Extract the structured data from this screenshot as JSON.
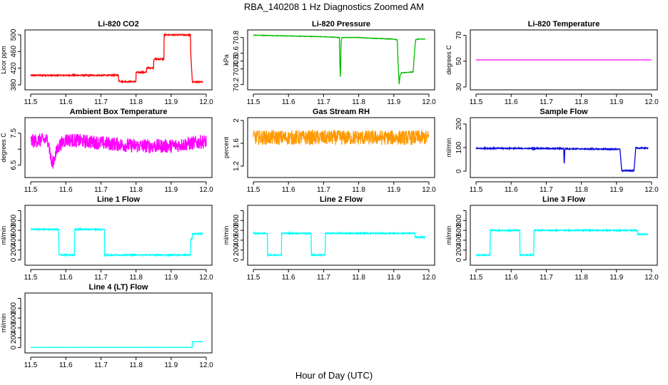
{
  "figure": {
    "title": "RBA_140208  1 Hz Diagnostics Zoomed AM",
    "xlabel": "Hour of Day (UTC)"
  },
  "chart_data": [
    {
      "type": "line",
      "title": "Li-820 CO2",
      "ylabel": "Licor ppm",
      "color": "#ff0000",
      "noise": 1.5,
      "xlim": [
        11.5,
        12.0
      ],
      "ylim": [
        375,
        505
      ],
      "yticks": [
        380,
        420,
        460,
        500
      ],
      "xticks": [
        11.5,
        11.6,
        11.7,
        11.8,
        11.9,
        12.0
      ],
      "series": [
        {
          "name": "CO2",
          "x": [
            11.5,
            11.75,
            11.75,
            11.76,
            11.76,
            11.8,
            11.8,
            11.83,
            11.83,
            11.85,
            11.85,
            11.88,
            11.88,
            11.955,
            11.955,
            11.96,
            11.96,
            11.99
          ],
          "y": [
            403,
            403,
            390,
            388,
            388,
            388,
            410,
            410,
            421,
            421,
            442,
            442,
            500,
            500,
            470,
            393,
            387,
            387
          ]
        }
      ]
    },
    {
      "type": "line",
      "title": "Li-820 Pressure",
      "ylabel": "kPa",
      "color": "#00bb00",
      "noise": 0.003,
      "xlim": [
        11.5,
        12.0
      ],
      "ylim": [
        70.17,
        70.86
      ],
      "yticks": [
        70.2,
        70.5,
        70.8
      ],
      "ytick_labels": [
        "70.2",
        "70.5",
        "70.8"
      ],
      "ytick_minor": [
        70.4,
        70.6
      ],
      "ytick_minor_labels": [
        "70.4",
        "70.6"
      ],
      "xticks": [
        11.5,
        11.6,
        11.7,
        11.8,
        11.9,
        12.0
      ],
      "series": [
        {
          "name": "Pressure",
          "x": [
            11.5,
            11.6,
            11.7,
            11.745,
            11.746,
            11.748,
            11.75,
            11.752,
            11.8,
            11.84,
            11.9,
            11.91,
            11.912,
            11.915,
            11.918,
            11.922,
            11.95,
            11.955,
            11.958,
            11.962,
            11.97,
            11.99
          ],
          "y": [
            70.83,
            70.82,
            70.81,
            70.8,
            70.5,
            70.28,
            70.75,
            70.8,
            70.8,
            70.79,
            70.78,
            70.77,
            70.5,
            70.2,
            70.32,
            70.35,
            70.36,
            70.36,
            70.55,
            70.77,
            70.78,
            70.78
          ]
        }
      ]
    },
    {
      "type": "line",
      "title": "Li-820 Temperature",
      "ylabel": "degrees C",
      "color": "#ff00ff",
      "noise": 0,
      "xlim": [
        11.5,
        12.0
      ],
      "ylim": [
        30,
        72
      ],
      "yticks": [
        30,
        50,
        70
      ],
      "xticks": [
        11.5,
        11.6,
        11.7,
        11.8,
        11.9,
        12.0
      ],
      "series": [
        {
          "name": "Temperature",
          "x": [
            11.5,
            12.0
          ],
          "y": [
            51,
            51
          ]
        }
      ]
    },
    {
      "type": "line",
      "title": "Ambient Box Temperature",
      "ylabel": "degrees C",
      "color": "#ff00ff",
      "noise": 0.22,
      "xlim": [
        11.5,
        12.0
      ],
      "ylim": [
        6.2,
        7.9
      ],
      "yticks": [
        6.5,
        7.0,
        7.5
      ],
      "ytick_labels": [
        "6.5",
        "",
        "7.5"
      ],
      "xticks": [
        11.5,
        11.6,
        11.7,
        11.8,
        11.9,
        12.0
      ],
      "series": [
        {
          "name": "Ambient",
          "x": [
            11.5,
            11.55,
            11.56,
            11.57,
            11.58,
            11.6,
            11.7,
            11.8,
            11.9,
            12.0
          ],
          "y": [
            7.25,
            7.3,
            6.5,
            6.8,
            7.1,
            7.3,
            7.2,
            7.1,
            7.1,
            7.25
          ]
        }
      ]
    },
    {
      "type": "line",
      "title": "Gas Stream RH",
      "ylabel": "percent",
      "color": "#ff9900",
      "noise": 0.13,
      "xlim": [
        11.5,
        12.0
      ],
      "ylim": [
        1.05,
        2.0
      ],
      "yticks": [
        1.2,
        1.6,
        2.0
      ],
      "xticks": [
        11.5,
        11.6,
        11.7,
        11.8,
        11.9,
        12.0
      ],
      "series": [
        {
          "name": "RH",
          "x": [
            11.5,
            11.6,
            11.7,
            11.8,
            11.9,
            12.0
          ],
          "y": [
            1.7,
            1.7,
            1.7,
            1.7,
            1.7,
            1.7
          ]
        }
      ]
    },
    {
      "type": "line",
      "title": "Sample Flow",
      "ylabel": "ml/min",
      "color": "#0000dd",
      "noise": 2.5,
      "xlim": [
        11.5,
        12.0
      ],
      "ylim": [
        -15,
        215
      ],
      "yticks": [
        0,
        100,
        200
      ],
      "xticks": [
        11.5,
        11.6,
        11.7,
        11.8,
        11.9,
        12.0
      ],
      "series": [
        {
          "name": "Sample",
          "x": [
            11.5,
            11.75,
            11.751,
            11.753,
            11.755,
            11.91,
            11.915,
            11.95,
            11.955,
            11.99
          ],
          "y": [
            97,
            96,
            20,
            94,
            95,
            93,
            2,
            2,
            98,
            98
          ]
        }
      ]
    },
    {
      "type": "line",
      "title": "Line 1 Flow",
      "ylabel": "ml/min",
      "color": "#00ffff",
      "noise": 12,
      "xlim": [
        11.5,
        12.0
      ],
      "ylim": [
        -50,
        1050
      ],
      "yticks": [
        0,
        200,
        400,
        600,
        800,
        1000
      ],
      "ytick_labels": [
        "0",
        "200",
        "400",
        "600",
        "800",
        ""
      ],
      "xticks": [
        11.5,
        11.6,
        11.7,
        11.8,
        11.9,
        12.0
      ],
      "series": [
        {
          "name": "Line 1",
          "x": [
            11.5,
            11.58,
            11.58,
            11.625,
            11.625,
            11.71,
            11.71,
            11.955,
            11.955,
            11.96,
            11.96,
            11.99
          ],
          "y": [
            620,
            620,
            100,
            100,
            620,
            620,
            100,
            100,
            420,
            420,
            530,
            530
          ]
        }
      ]
    },
    {
      "type": "line",
      "title": "Line 2 Flow",
      "ylabel": "ml/min",
      "color": "#00ffff",
      "noise": 12,
      "xlim": [
        11.5,
        12.0
      ],
      "ylim": [
        -50,
        1050
      ],
      "yticks": [
        0,
        200,
        400,
        600,
        800,
        1000
      ],
      "ytick_labels": [
        "0",
        "200",
        "400",
        "600",
        "800",
        ""
      ],
      "xticks": [
        11.5,
        11.6,
        11.7,
        11.8,
        11.9,
        12.0
      ],
      "series": [
        {
          "name": "Line 2",
          "x": [
            11.5,
            11.54,
            11.54,
            11.58,
            11.58,
            11.665,
            11.665,
            11.705,
            11.705,
            11.96,
            11.96,
            11.99
          ],
          "y": [
            540,
            540,
            100,
            100,
            540,
            540,
            100,
            100,
            540,
            540,
            460,
            460
          ]
        }
      ]
    },
    {
      "type": "line",
      "title": "Line 3 Flow",
      "ylabel": "ml/min",
      "color": "#00ffff",
      "noise": 12,
      "xlim": [
        11.5,
        12.0
      ],
      "ylim": [
        -50,
        1050
      ],
      "yticks": [
        0,
        200,
        400,
        600,
        800,
        1000
      ],
      "ytick_labels": [
        "0",
        "200",
        "400",
        "600",
        "800",
        ""
      ],
      "xticks": [
        11.5,
        11.6,
        11.7,
        11.8,
        11.9,
        12.0
      ],
      "series": [
        {
          "name": "Line 3",
          "x": [
            11.5,
            11.54,
            11.54,
            11.625,
            11.625,
            11.665,
            11.665,
            11.96,
            11.96,
            11.99
          ],
          "y": [
            100,
            100,
            600,
            600,
            100,
            100,
            600,
            600,
            520,
            520
          ]
        }
      ]
    },
    {
      "type": "line",
      "title": "Line 4 (LT) Flow",
      "ylabel": "ml/min",
      "color": "#00ffff",
      "noise": 3,
      "xlim": [
        11.5,
        12.0
      ],
      "ylim": [
        -50,
        1050
      ],
      "yticks": [
        0,
        200,
        400,
        600,
        800,
        1000
      ],
      "ytick_labels": [
        "0",
        "200",
        "400",
        "600",
        "800",
        ""
      ],
      "xticks": [
        11.5,
        11.6,
        11.7,
        11.8,
        11.9,
        12.0
      ],
      "series": [
        {
          "name": "Line 4",
          "x": [
            11.5,
            11.96,
            11.96,
            11.99
          ],
          "y": [
            5,
            5,
            120,
            120
          ]
        }
      ]
    }
  ]
}
